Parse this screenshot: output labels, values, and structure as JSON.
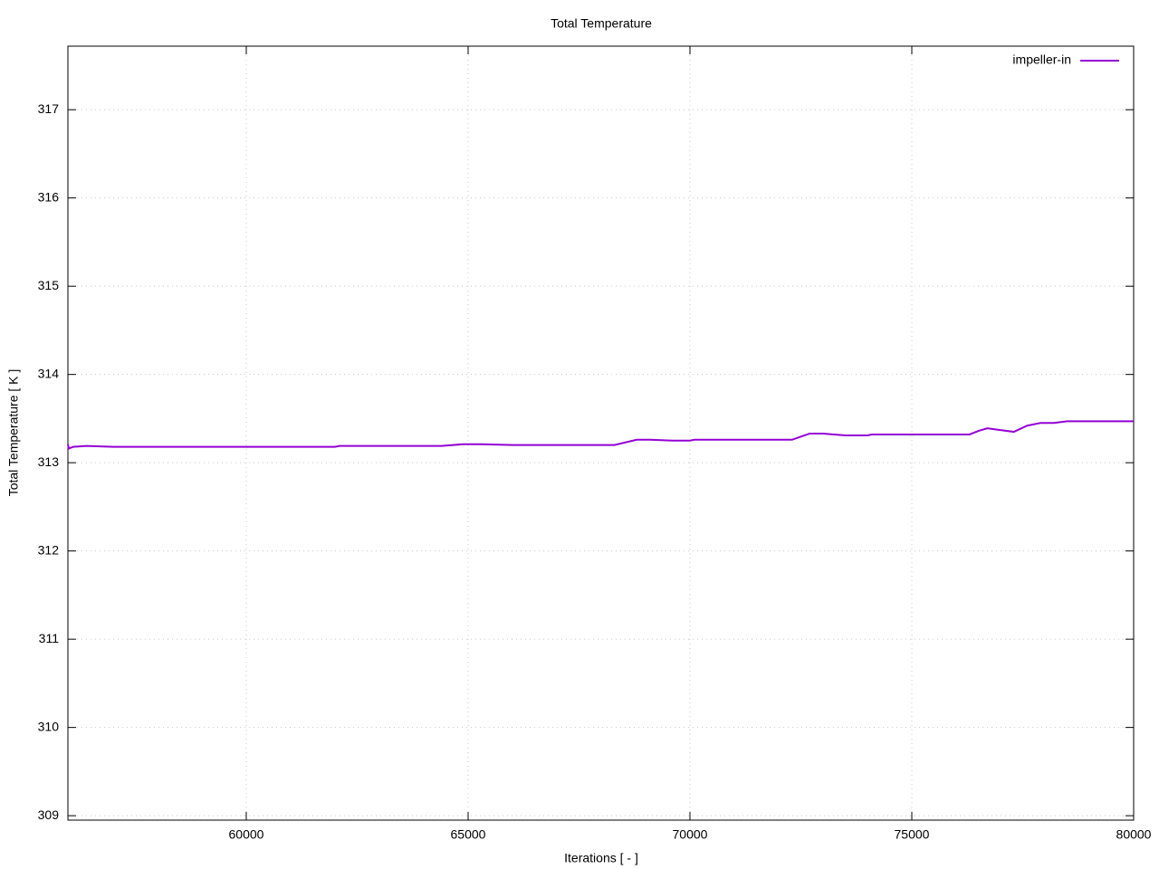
{
  "chart_data": {
    "type": "line",
    "title": "Total Temperature",
    "x_label": "Iterations [ - ]",
    "y_label": "Total Temperature [ K ]",
    "x": [
      55980,
      56000,
      56100,
      56400,
      57000,
      60000,
      62000,
      62100,
      64000,
      64400,
      64900,
      65300,
      66000,
      68300,
      68800,
      69100,
      69600,
      70000,
      70100,
      72000,
      72300,
      72700,
      73000,
      73500,
      74000,
      74100,
      76000,
      76300,
      76500,
      76700,
      77000,
      77300,
      77600,
      77900,
      78200,
      78500,
      78700,
      80000
    ],
    "series": [
      {
        "name": "impeller-in",
        "color": "#9400d3",
        "values": [
          313.21,
          313.16,
          313.18,
          313.19,
          313.18,
          313.18,
          313.18,
          313.19,
          313.19,
          313.19,
          313.21,
          313.21,
          313.2,
          313.2,
          313.26,
          313.26,
          313.25,
          313.25,
          313.26,
          313.26,
          313.26,
          313.33,
          313.33,
          313.31,
          313.31,
          313.32,
          313.32,
          313.32,
          313.36,
          313.39,
          313.37,
          313.35,
          313.42,
          313.45,
          313.45,
          313.47,
          313.47,
          313.47
        ]
      }
    ],
    "xlim": [
      55980,
      80000
    ],
    "ylim": [
      308.95,
      317.72
    ],
    "xticks": [
      60000,
      65000,
      70000,
      75000,
      80000
    ],
    "yticks": [
      309,
      310,
      311,
      312,
      313,
      314,
      315,
      316,
      317
    ],
    "grid": true,
    "legend": "top-right"
  }
}
